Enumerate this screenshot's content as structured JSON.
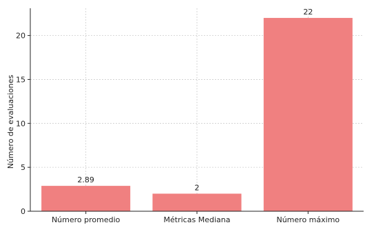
{
  "chart_data": {
    "type": "bar",
    "title": "",
    "xlabel": "",
    "ylabel": "Número de evaluaciones",
    "categories": [
      "Número promedio",
      "Métricas Mediana",
      "Número máximo"
    ],
    "values": [
      2.89,
      2,
      22
    ],
    "data_labels": [
      "2.89",
      "2",
      "22"
    ],
    "yticks": [
      0,
      5,
      10,
      15,
      20
    ],
    "ylim": [
      0,
      23.1
    ],
    "grid": true,
    "colors": {
      "bar": "#f08080",
      "grid": "#cccccc",
      "axis": "#222222"
    }
  }
}
